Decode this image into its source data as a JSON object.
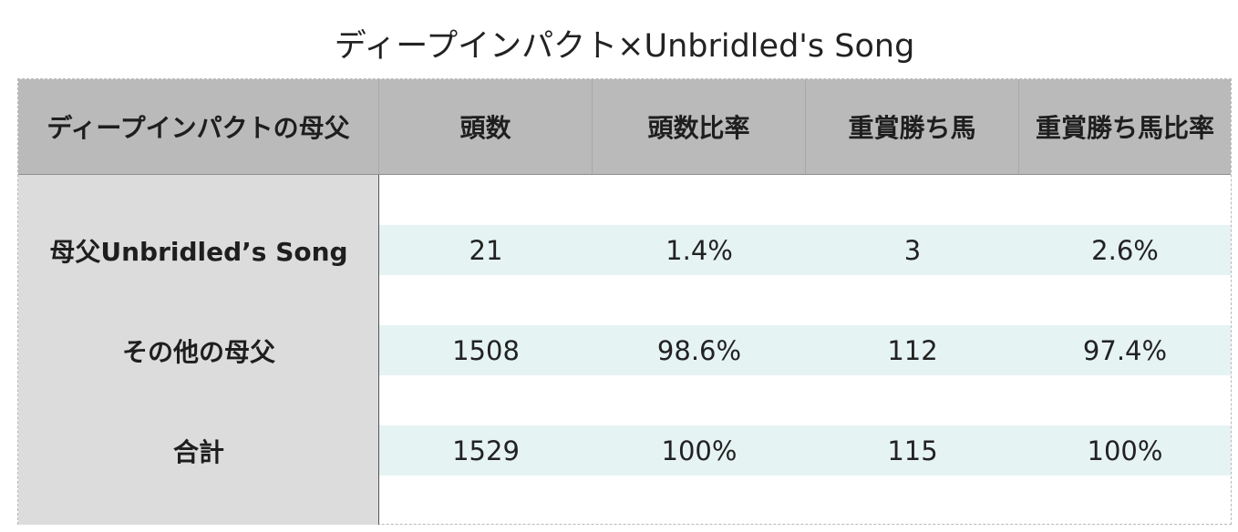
{
  "title": "ディープインパクト×Unbridled's Song",
  "headers": [
    "ディープインパクトの母父",
    "頭数",
    "頭数比率",
    "重賞勝ち馬",
    "重賞勝ち馬比率"
  ],
  "rows": [
    {
      "label": "母父Unbridled’s Song",
      "count": "21",
      "count_ratio": "1.4%",
      "winners": "3",
      "winners_ratio": "2.6%"
    },
    {
      "label": "その他の母父",
      "count": "1508",
      "count_ratio": "98.6%",
      "winners": "112",
      "winners_ratio": "97.4%"
    },
    {
      "label": "合計",
      "count": "1529",
      "count_ratio": "100%",
      "winners": "115",
      "winners_ratio": "100%"
    }
  ]
}
